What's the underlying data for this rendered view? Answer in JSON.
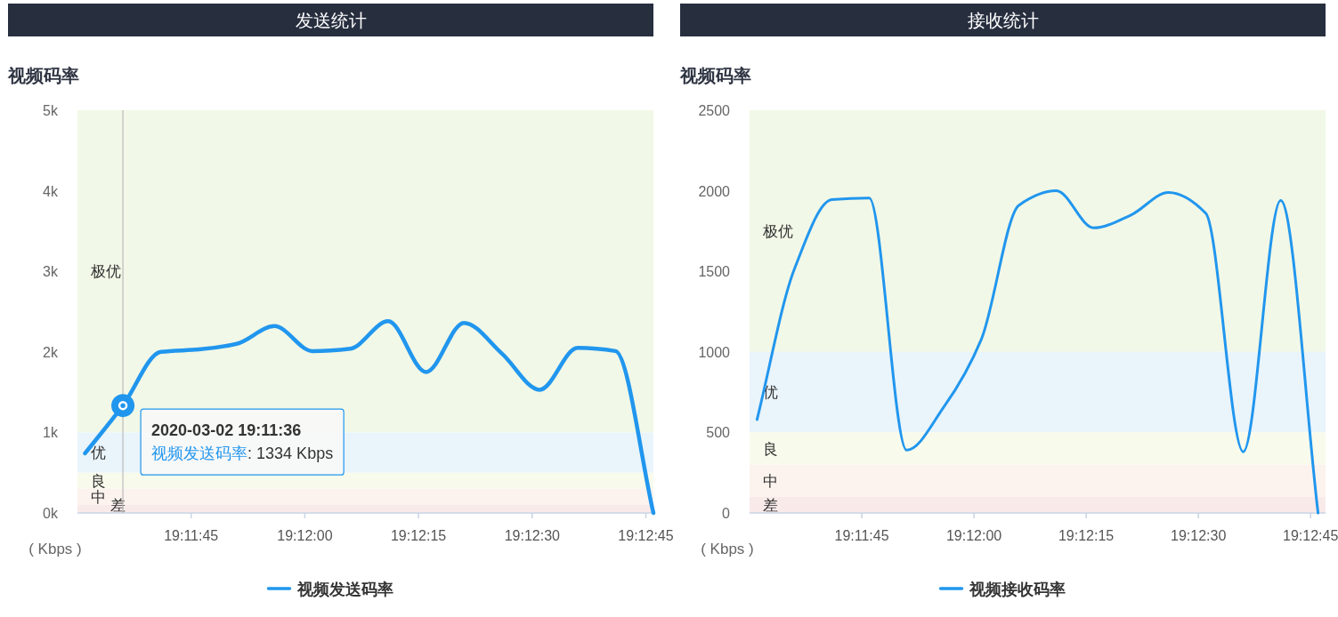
{
  "chart_data": [
    {
      "type": "line",
      "title": "发送统计",
      "subtitle": "视频码率",
      "ylabel": "( Kbps )",
      "x": [
        "2020-03-02T19:11:31",
        "2020-03-02T19:11:36",
        "2020-03-02T19:11:41",
        "2020-03-02T19:11:46",
        "2020-03-02T19:11:51",
        "2020-03-02T19:11:56",
        "2020-03-02T19:12:01",
        "2020-03-02T19:12:06",
        "2020-03-02T19:12:11",
        "2020-03-02T19:12:16",
        "2020-03-02T19:12:21",
        "2020-03-02T19:12:26",
        "2020-03-02T19:12:31",
        "2020-03-02T19:12:36",
        "2020-03-02T19:12:41",
        "2020-03-02T19:12:46"
      ],
      "series": [
        {
          "name": "视频发送码率",
          "color": "#2196ee",
          "values": [
            740,
            1334,
            2000,
            2030,
            2100,
            2320,
            2010,
            2040,
            2380,
            1750,
            2360,
            1980,
            1530,
            2050,
            2010,
            0
          ]
        }
      ],
      "xlim": [
        "2020-03-02T19:11:30",
        "2020-03-02T19:12:46"
      ],
      "xticks": [
        {
          "value": "2020-03-02T19:11:45",
          "label": "19:11:45"
        },
        {
          "value": "2020-03-02T19:12:00",
          "label": "19:12:00"
        },
        {
          "value": "2020-03-02T19:12:15",
          "label": "19:12:15"
        },
        {
          "value": "2020-03-02T19:12:30",
          "label": "19:12:30"
        },
        {
          "value": "2020-03-02T19:12:45",
          "label": "19:12:45"
        }
      ],
      "ylim": [
        0,
        5000
      ],
      "yticks": [
        {
          "value": 0,
          "label": "0k"
        },
        {
          "value": 1000,
          "label": "1k"
        },
        {
          "value": 2000,
          "label": "2k"
        },
        {
          "value": 3000,
          "label": "3k"
        },
        {
          "value": 4000,
          "label": "4k"
        },
        {
          "value": 5000,
          "label": "5k"
        }
      ],
      "bands": [
        {
          "axis": "y",
          "from": 1000,
          "to": 5000,
          "label": "极优",
          "color": "#f1f8e7"
        },
        {
          "axis": "y",
          "from": 500,
          "to": 1000,
          "label": "优",
          "color": "#e9f4fb"
        },
        {
          "axis": "y",
          "from": 300,
          "to": 500,
          "label": "良",
          "color": "#f8fbec"
        },
        {
          "axis": "y",
          "from": 100,
          "to": 300,
          "label": "中",
          "color": "#fcf3ee"
        },
        {
          "axis": "y",
          "from": 0,
          "to": 100,
          "label": "差",
          "color": "#f9eaea"
        }
      ],
      "ref_lines": [
        {
          "axis": "x",
          "value": "2020-03-02T19:11:36",
          "color": "#bbbbbb"
        }
      ],
      "annotations": [
        {
          "text": "2020-03-02 19:11:36\n视频发送码率: 1334 Kbps",
          "x": "2020-03-02T19:11:36",
          "y": 1334
        }
      ],
      "legend": "bottom"
    },
    {
      "type": "line",
      "title": "接收统计",
      "subtitle": "视频码率",
      "ylabel": "( Kbps )",
      "x": [
        "2020-03-02T19:11:31",
        "2020-03-02T19:11:36",
        "2020-03-02T19:11:41",
        "2020-03-02T19:11:46",
        "2020-03-02T19:11:51",
        "2020-03-02T19:11:56",
        "2020-03-02T19:12:01",
        "2020-03-02T19:12:06",
        "2020-03-02T19:12:11",
        "2020-03-02T19:12:16",
        "2020-03-02T19:12:21",
        "2020-03-02T19:12:26",
        "2020-03-02T19:12:31",
        "2020-03-02T19:12:36",
        "2020-03-02T19:12:41",
        "2020-03-02T19:12:46"
      ],
      "series": [
        {
          "name": "视频接收码率",
          "color": "#2196ee",
          "values": [
            580,
            1515,
            1945,
            1955,
            390,
            660,
            1080,
            1910,
            2000,
            1770,
            1850,
            1990,
            1860,
            380,
            1940,
            0
          ]
        }
      ],
      "xlim": [
        "2020-03-02T19:11:30",
        "2020-03-02T19:12:47"
      ],
      "xticks": [
        {
          "value": "2020-03-02T19:11:45",
          "label": "19:11:45"
        },
        {
          "value": "2020-03-02T19:12:00",
          "label": "19:12:00"
        },
        {
          "value": "2020-03-02T19:12:15",
          "label": "19:12:15"
        },
        {
          "value": "2020-03-02T19:12:30",
          "label": "19:12:30"
        },
        {
          "value": "2020-03-02T19:12:45",
          "label": "19:12:45"
        }
      ],
      "ylim": [
        0,
        2500
      ],
      "yticks": [
        0,
        500,
        1000,
        1500,
        2000,
        2500
      ],
      "bands": [
        {
          "axis": "y",
          "from": 1000,
          "to": 2500,
          "label": "极优",
          "color": "#f1f8e7"
        },
        {
          "axis": "y",
          "from": 500,
          "to": 1000,
          "label": "优",
          "color": "#e9f4fb"
        },
        {
          "axis": "y",
          "from": 300,
          "to": 500,
          "label": "良",
          "color": "#f8fbec"
        },
        {
          "axis": "y",
          "from": 100,
          "to": 300,
          "label": "中",
          "color": "#fcf3ee"
        },
        {
          "axis": "y",
          "from": 0,
          "to": 100,
          "label": "差",
          "color": "#f9eaea"
        }
      ],
      "legend": "bottom"
    }
  ]
}
